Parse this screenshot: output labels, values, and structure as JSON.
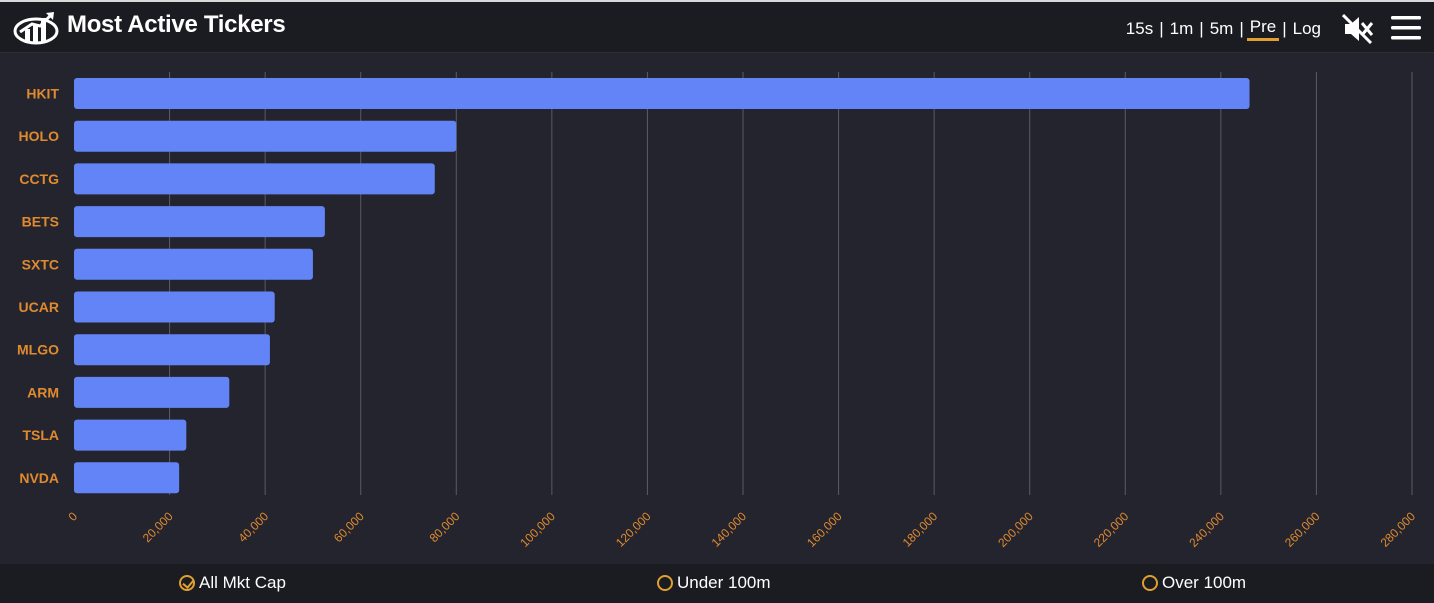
{
  "header": {
    "title": "Most Active Tickers",
    "timeframes": [
      {
        "label": "15s",
        "active": false
      },
      {
        "label": "1m",
        "active": false
      },
      {
        "label": "5m",
        "active": false
      },
      {
        "label": "Pre",
        "active": true
      },
      {
        "label": "Log",
        "active": false
      }
    ],
    "icons": {
      "logo": "chart-logo-icon",
      "mute": "speaker-mute-icon",
      "menu": "hamburger-menu-icon"
    }
  },
  "colors": {
    "bar": "#6384f7",
    "label": "#e08a2e",
    "accent": "#e0a030",
    "grid": "#5a5a66",
    "background": "#24242e"
  },
  "chart_data": {
    "type": "bar",
    "orientation": "horizontal",
    "title": "",
    "xlabel": "",
    "ylabel": "",
    "categories": [
      "HKIT",
      "HOLO",
      "CCTG",
      "BETS",
      "SXTC",
      "UCAR",
      "MLGO",
      "ARM",
      "TSLA",
      "NVDA"
    ],
    "values": [
      246000,
      80000,
      75500,
      52500,
      50000,
      42000,
      41000,
      32500,
      23500,
      22000
    ],
    "xlim": [
      0,
      280000
    ],
    "xticks": [
      0,
      20000,
      40000,
      60000,
      80000,
      100000,
      120000,
      140000,
      160000,
      180000,
      200000,
      220000,
      240000,
      260000,
      280000
    ],
    "xtick_labels": [
      "0",
      "20,000",
      "40,000",
      "60,000",
      "80,000",
      "100,000",
      "120,000",
      "140,000",
      "160,000",
      "180,000",
      "200,000",
      "220,000",
      "240,000",
      "260,000",
      "280,000"
    ],
    "grid": true,
    "legend": "none"
  },
  "footer": {
    "filters": [
      {
        "label": "All Mkt Cap",
        "checked": true
      },
      {
        "label": "Under 100m",
        "checked": false
      },
      {
        "label": "Over 100m",
        "checked": false
      }
    ]
  }
}
